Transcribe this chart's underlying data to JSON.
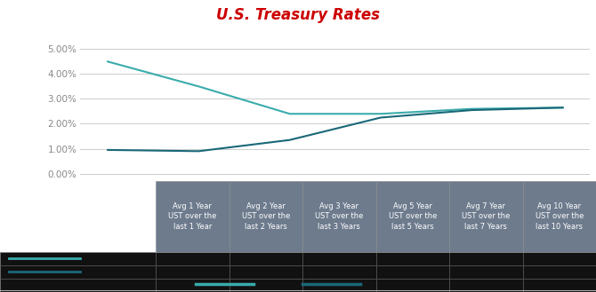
{
  "title": "U.S. Treasury Rates",
  "title_color": "#cc0000",
  "title_fontsize": 12,
  "background_color": "#ffffff",
  "plot_bg_color": "#ffffff",
  "yticks": [
    0.0,
    0.01,
    0.02,
    0.03,
    0.04,
    0.05
  ],
  "ytick_labels": [
    "0.00%",
    "1.00%",
    "2.00%",
    "3.00%",
    "4.00%",
    "5.00%"
  ],
  "x_positions": [
    0,
    1,
    2,
    3,
    4,
    5
  ],
  "line1_values": [
    4.5,
    3.5,
    2.4,
    2.4,
    2.6,
    2.65
  ],
  "line2_values": [
    0.95,
    0.9,
    1.35,
    2.25,
    2.55,
    2.65
  ],
  "line1_color": "#3aacac",
  "line2_color": "#1a6878",
  "line_width": 1.5,
  "grid_color": "#cccccc",
  "ytick_color": "#888888",
  "table_header_bg": "#6d7b8d",
  "table_header_color": "#ffffff",
  "table_bg": "#111111",
  "table_line_color": "#555555",
  "label_col_bg": "#111111",
  "col_headers": [
    "Avg 1 Year\nUST over the\nlast 1 Year",
    "Avg 2 Year\nUST over the\nlast 2 Years",
    "Avg 3 Year\nUST over the\nlast 3 Years",
    "Avg 5 Year\nUST over the\nlast 5 Years",
    "Avg 7 Year\nUST over the\nlast 7 Years",
    "Avg 10 Year\nUST over the\nlast 10 Years"
  ],
  "legend_line1_color": "#3aacac",
  "legend_line2_color": "#1a6878",
  "bottom_sep_color": "#aaaaaa"
}
